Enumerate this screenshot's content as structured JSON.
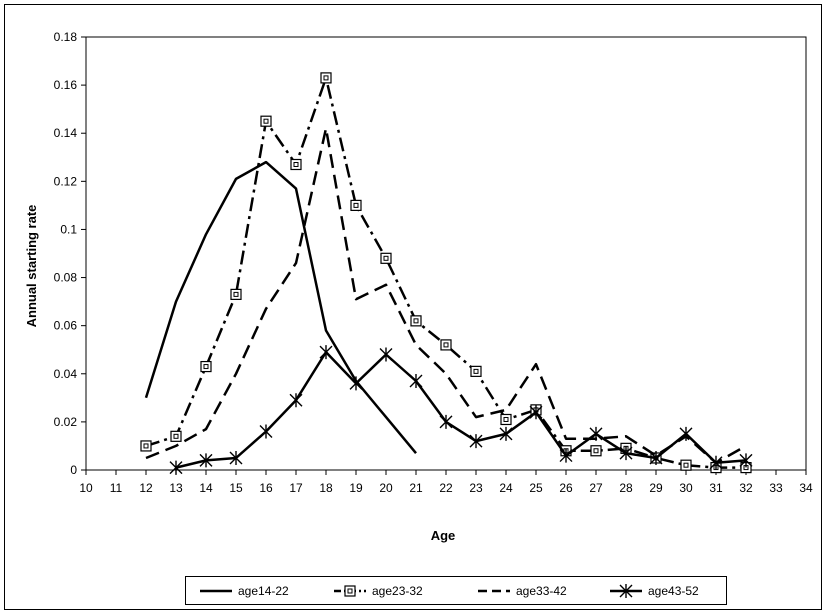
{
  "chart_data": {
    "type": "line",
    "title": "",
    "xlabel": "Age",
    "ylabel": "Annual starting rate",
    "xlim": [
      10,
      34
    ],
    "ylim": [
      0,
      0.18
    ],
    "x_ticks": [
      "10",
      "11",
      "12",
      "13",
      "14",
      "15",
      "16",
      "17",
      "18",
      "19",
      "20",
      "21",
      "22",
      "23",
      "24",
      "25",
      "26",
      "27",
      "28",
      "29",
      "30",
      "31",
      "32",
      "33",
      "34"
    ],
    "y_ticks": [
      "0",
      "0.02",
      "0.04",
      "0.06",
      "0.08",
      "0.1",
      "0.12",
      "0.14",
      "0.16",
      "0.18"
    ],
    "grid": false,
    "legend_position": "bottom",
    "series": [
      {
        "name": "age14-22",
        "style": "solid",
        "marker": "none",
        "x": [
          12,
          13,
          14,
          15,
          16,
          17,
          18,
          19,
          20,
          21
        ],
        "values": [
          0.03,
          0.07,
          0.098,
          0.121,
          0.128,
          0.117,
          0.058,
          0.037,
          0.022,
          0.007
        ]
      },
      {
        "name": "age23-32",
        "style": "dashdot",
        "marker": "square",
        "x": [
          12,
          13,
          14,
          15,
          16,
          17,
          18,
          19,
          20,
          21,
          22,
          23,
          24,
          25,
          26,
          27,
          28,
          29,
          30,
          31,
          32
        ],
        "values": [
          0.01,
          0.014,
          0.043,
          0.073,
          0.145,
          0.127,
          0.163,
          0.11,
          0.088,
          0.062,
          0.052,
          0.041,
          0.021,
          0.025,
          0.008,
          0.008,
          0.009,
          0.005,
          0.002,
          0.001,
          0.001
        ]
      },
      {
        "name": "age33-42",
        "style": "dashed",
        "marker": "none",
        "x": [
          12,
          13,
          14,
          15,
          16,
          17,
          18,
          19,
          20,
          21,
          22,
          23,
          24,
          25,
          26,
          27,
          28,
          29,
          30,
          31,
          32
        ],
        "values": [
          0.005,
          0.01,
          0.017,
          0.04,
          0.067,
          0.086,
          0.142,
          0.071,
          0.077,
          0.052,
          0.04,
          0.022,
          0.025,
          0.044,
          0.013,
          0.013,
          0.014,
          0.006,
          0.014,
          0.003,
          0.01
        ]
      },
      {
        "name": "age43-52",
        "style": "solid",
        "marker": "asterisk",
        "x": [
          13,
          14,
          15,
          16,
          17,
          18,
          19,
          20,
          21,
          22,
          23,
          24,
          25,
          26,
          27,
          28,
          29,
          30,
          31,
          32
        ],
        "values": [
          0.001,
          0.004,
          0.005,
          0.016,
          0.029,
          0.049,
          0.036,
          0.048,
          0.037,
          0.02,
          0.012,
          0.015,
          0.024,
          0.006,
          0.015,
          0.007,
          0.005,
          0.015,
          0.003,
          0.004
        ]
      }
    ]
  }
}
